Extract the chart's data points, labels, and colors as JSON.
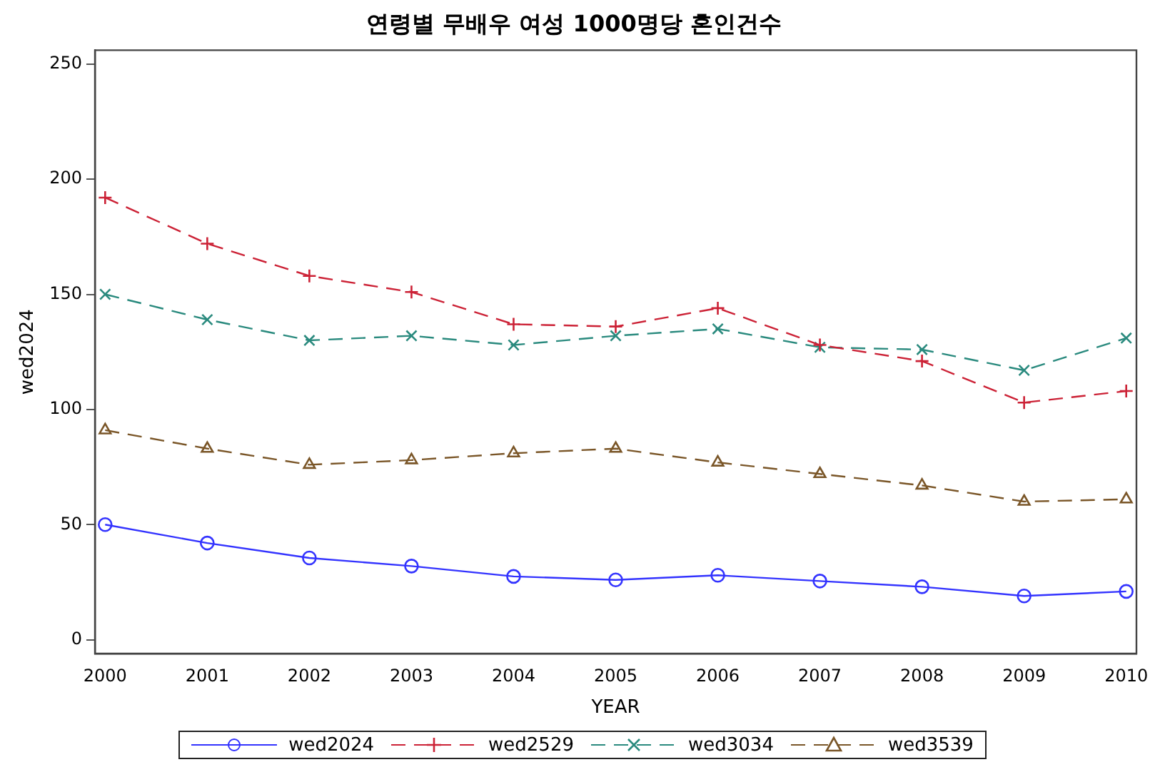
{
  "chart_data": {
    "type": "line",
    "title": "연령별 무배우 여성 1000명당 혼인건수",
    "xlabel": "YEAR",
    "ylabel": "wed2024",
    "x": [
      2000,
      2001,
      2002,
      2003,
      2004,
      2005,
      2006,
      2007,
      2008,
      2009,
      2010
    ],
    "series": [
      {
        "name": "wed2024",
        "color": "#3333ff",
        "marker": "circle",
        "line_style": "solid",
        "values": [
          50,
          42,
          35.5,
          32,
          27.5,
          26,
          28,
          25.5,
          23,
          19,
          21
        ]
      },
      {
        "name": "wed2529",
        "color": "#cc2236",
        "marker": "cross",
        "line_style": "dashed",
        "values": [
          192,
          172,
          158,
          151,
          137,
          136,
          144,
          128,
          121,
          103,
          108
        ]
      },
      {
        "name": "wed3034",
        "color": "#2a8a7e",
        "marker": "cross",
        "line_style": "dashed",
        "values": [
          150,
          139,
          130,
          132,
          128,
          132,
          135,
          127,
          126,
          117,
          131
        ]
      },
      {
        "name": "wed3539",
        "color": "#7a5628",
        "marker": "triangle",
        "line_style": "dashed",
        "values": [
          91,
          83,
          76,
          78,
          81,
          83,
          77,
          72,
          67,
          60,
          61
        ]
      }
    ],
    "xlim": [
      1999.9,
      2010.1
    ],
    "xticks": [
      2000,
      2001,
      2002,
      2003,
      2004,
      2005,
      2006,
      2007,
      2008,
      2009,
      2010
    ],
    "ylim": [
      -6,
      256
    ],
    "yticks": [
      0,
      50,
      100,
      150,
      200,
      250
    ],
    "grid": false,
    "legend": "bottom"
  }
}
